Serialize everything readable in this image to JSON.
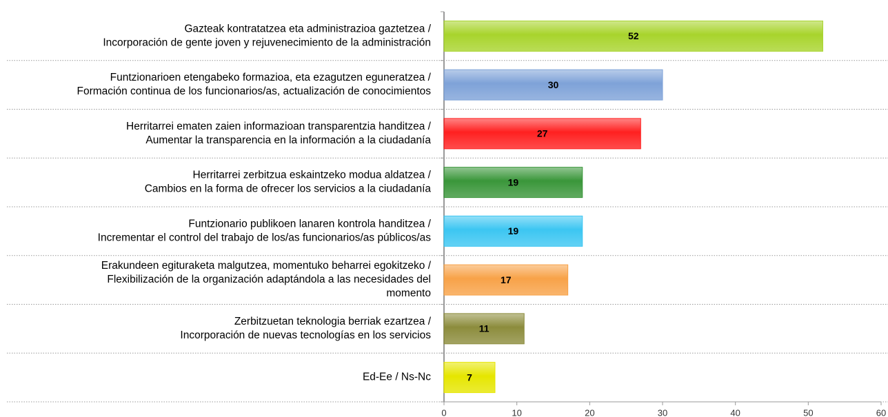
{
  "chart_data": {
    "type": "bar",
    "orientation": "horizontal",
    "categories": [
      [
        "Gazteak kontratatzea eta administrazioa gaztetzea /",
        "Incorporación de gente joven y rejuvenecimiento de la administración"
      ],
      [
        "Funtzionarioen etengabeko formazioa, eta ezagutzen eguneratzea /",
        "Formación continua de los funcionarios/as, actualización de conocimientos"
      ],
      [
        "Herritarrei ematen zaien informazioan transparentzia handitzea /",
        "Aumentar la transparencia en la información a la ciudadanía"
      ],
      [
        "Herritarrei zerbitzua eskaintzeko modua aldatzea /",
        "Cambios en la forma de ofrecer los servicios a la ciudadanía"
      ],
      [
        "Funtzionario publikoen lanaren kontrola handitzea /",
        "Incrementar el control del trabajo de los/as funcionarios/as públicos/as"
      ],
      [
        "Erakundeen egituraketa malgutzea, momentuko beharrei egokitzeko /",
        "Flexibilización de la organización adaptándola a las necesidades del",
        "momento"
      ],
      [
        "Zerbitzuetan teknologia berriak ezartzea /",
        "Incorporación de nuevas tecnologías en los servicios"
      ],
      [
        "Ed-Ee / Ns-Nc"
      ]
    ],
    "values": [
      52,
      30,
      27,
      19,
      19,
      17,
      11,
      7
    ],
    "colors": [
      "#a8d42c",
      "#7ea2d8",
      "#ff2020",
      "#3a963a",
      "#3cc6f2",
      "#f8a248",
      "#8c8c3c",
      "#e6e600"
    ],
    "xlim": [
      0,
      60
    ],
    "xticks": [
      0,
      10,
      20,
      30,
      40,
      50,
      60
    ]
  }
}
